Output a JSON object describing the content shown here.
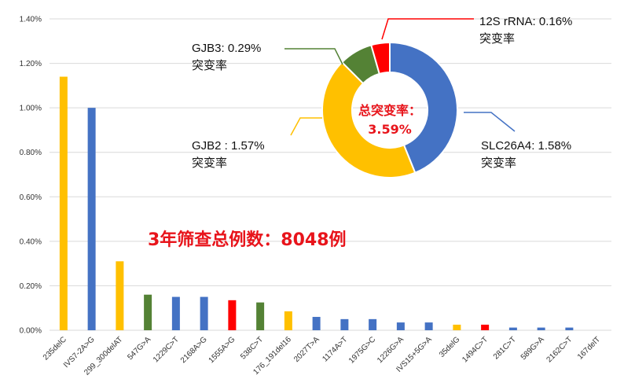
{
  "chart_data": [
    {
      "type": "bar",
      "categories": [
        "235delC",
        "IVS7-2A>G",
        "299_300delAT",
        "547G>A",
        "1229C>T",
        "2168A>G",
        "1555A>G",
        "538C>T",
        "176_191del16",
        "2027T>A",
        "1174A>T",
        "1975G>C",
        "1226G>A",
        "IVS15+5G>A",
        "35delG",
        "1494C>T",
        "281C>T",
        "589G>A",
        "2162C>T",
        "167delT"
      ],
      "values": [
        1.14,
        1.0,
        0.31,
        0.16,
        0.15,
        0.15,
        0.135,
        0.125,
        0.085,
        0.06,
        0.05,
        0.05,
        0.035,
        0.035,
        0.025,
        0.025,
        0.012,
        0.012,
        0.012,
        0.0
      ],
      "gene": [
        "GJB2",
        "SLC26A4",
        "GJB2",
        "GJB3",
        "SLC26A4",
        "SLC26A4",
        "12S",
        "GJB3",
        "GJB2",
        "SLC26A4",
        "SLC26A4",
        "SLC26A4",
        "SLC26A4",
        "SLC26A4",
        "GJB2",
        "12S",
        "SLC26A4",
        "SLC26A4",
        "SLC26A4",
        "SLC26A4"
      ],
      "ylim": [
        0,
        1.4
      ],
      "yticks": [
        "0.00%",
        "0.20%",
        "0.40%",
        "0.60%",
        "0.80%",
        "1.00%",
        "1.20%",
        "1.40%"
      ],
      "grid": true,
      "title": "",
      "xlabel": "",
      "ylabel": ""
    },
    {
      "type": "pie",
      "donut": true,
      "labels": [
        "SLC26A4",
        "GJB2",
        "GJB3",
        "12S rRNA"
      ],
      "values": [
        1.58,
        1.57,
        0.29,
        0.16
      ],
      "label_text": [
        {
          "line1": "SLC26A4: 1.58%",
          "line2": "突变率"
        },
        {
          "line1": "GJB2 : 1.57%",
          "line2": "突变率"
        },
        {
          "line1": "GJB3: 0.29%",
          "line2": "突变率"
        },
        {
          "line1": "12S rRNA: 0.16%",
          "line2": "突变率"
        }
      ],
      "center_text": [
        "总突变率：",
        "3.59%"
      ]
    }
  ],
  "annotation": "3年筛查总例数：8048例",
  "colors": {
    "GJB2": "#ffc000",
    "SLC26A4": "#4472c4",
    "GJB3": "#548235",
    "12S": "#ff0000",
    "grid": "#d9d9d9"
  }
}
